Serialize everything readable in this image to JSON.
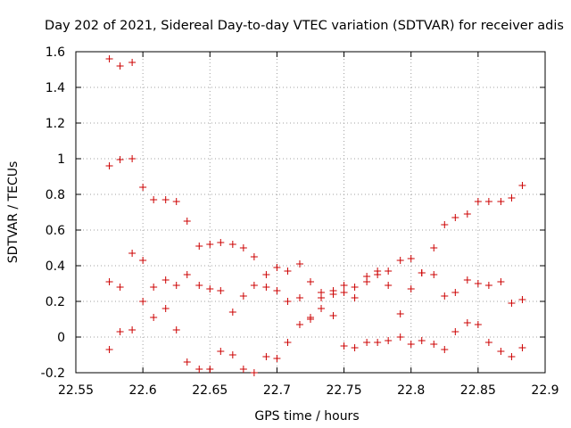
{
  "chart_data": {
    "type": "scatter",
    "title": "Day 202 of 2021, Sidereal Day-to-day VTEC variation (SDTVAR) for receiver adis",
    "xlabel": "GPS time / hours",
    "ylabel": "SDTVAR / TECUs",
    "xlim": [
      22.55,
      22.9
    ],
    "ylim": [
      -0.2,
      1.6
    ],
    "grid": true,
    "xticks": [
      "22.55",
      "22.6",
      "22.65",
      "22.7",
      "22.75",
      "22.8",
      "22.85",
      "22.9"
    ],
    "yticks": [
      "-0.2",
      "0",
      "0.2",
      "0.4",
      "0.6",
      "0.8",
      "1",
      "1.2",
      "1.4",
      "1.6"
    ],
    "series": [
      {
        "name": "SDTVAR",
        "color": "#cc0000",
        "marker": "plus",
        "points": [
          [
            22.575,
            1.56
          ],
          [
            22.583,
            1.52
          ],
          [
            22.592,
            1.54
          ],
          [
            22.575,
            0.96
          ],
          [
            22.583,
            0.995
          ],
          [
            22.592,
            1.0
          ],
          [
            22.6,
            0.84
          ],
          [
            22.608,
            0.77
          ],
          [
            22.617,
            0.77
          ],
          [
            22.625,
            0.76
          ],
          [
            22.633,
            0.65
          ],
          [
            22.642,
            0.51
          ],
          [
            22.65,
            0.52
          ],
          [
            22.658,
            0.53
          ],
          [
            22.667,
            0.52
          ],
          [
            22.675,
            0.5
          ],
          [
            22.683,
            0.45
          ],
          [
            22.692,
            0.35
          ],
          [
            22.7,
            0.39
          ],
          [
            22.708,
            0.37
          ],
          [
            22.717,
            0.41
          ],
          [
            22.725,
            0.31
          ],
          [
            22.733,
            0.25
          ],
          [
            22.742,
            0.26
          ],
          [
            22.75,
            0.29
          ],
          [
            22.758,
            0.28
          ],
          [
            22.767,
            0.34
          ],
          [
            22.775,
            0.37
          ],
          [
            22.783,
            0.37
          ],
          [
            22.792,
            0.43
          ],
          [
            22.8,
            0.44
          ],
          [
            22.808,
            0.36
          ],
          [
            22.817,
            0.5
          ],
          [
            22.825,
            0.63
          ],
          [
            22.833,
            0.67
          ],
          [
            22.842,
            0.69
          ],
          [
            22.85,
            0.76
          ],
          [
            22.858,
            0.76
          ],
          [
            22.867,
            0.76
          ],
          [
            22.875,
            0.78
          ],
          [
            22.883,
            0.85
          ],
          [
            22.575,
            0.31
          ],
          [
            22.583,
            0.28
          ],
          [
            22.592,
            0.47
          ],
          [
            22.6,
            0.43
          ],
          [
            22.6,
            0.2
          ],
          [
            22.608,
            0.28
          ],
          [
            22.617,
            0.32
          ],
          [
            22.625,
            0.29
          ],
          [
            22.633,
            0.35
          ],
          [
            22.642,
            0.29
          ],
          [
            22.65,
            0.27
          ],
          [
            22.658,
            0.26
          ],
          [
            22.667,
            0.14
          ],
          [
            22.675,
            0.23
          ],
          [
            22.683,
            0.29
          ],
          [
            22.692,
            0.28
          ],
          [
            22.7,
            0.26
          ],
          [
            22.708,
            0.2
          ],
          [
            22.717,
            0.22
          ],
          [
            22.725,
            0.1
          ],
          [
            22.733,
            0.22
          ],
          [
            22.742,
            0.24
          ],
          [
            22.75,
            0.25
          ],
          [
            22.758,
            0.22
          ],
          [
            22.767,
            0.31
          ],
          [
            22.775,
            0.35
          ],
          [
            22.783,
            0.29
          ],
          [
            22.792,
            0.13
          ],
          [
            22.8,
            0.27
          ],
          [
            22.808,
            0.36
          ],
          [
            22.817,
            0.35
          ],
          [
            22.825,
            0.23
          ],
          [
            22.833,
            0.25
          ],
          [
            22.842,
            0.32
          ],
          [
            22.85,
            0.3
          ],
          [
            22.858,
            0.29
          ],
          [
            22.867,
            0.31
          ],
          [
            22.875,
            0.19
          ],
          [
            22.883,
            0.21
          ],
          [
            22.575,
            -0.07
          ],
          [
            22.583,
            0.03
          ],
          [
            22.592,
            0.04
          ],
          [
            22.608,
            0.11
          ],
          [
            22.617,
            0.16
          ],
          [
            22.625,
            0.04
          ],
          [
            22.633,
            -0.14
          ],
          [
            22.642,
            -0.18
          ],
          [
            22.65,
            -0.18
          ],
          [
            22.658,
            -0.08
          ],
          [
            22.667,
            -0.1
          ],
          [
            22.675,
            -0.18
          ],
          [
            22.683,
            -0.2
          ],
          [
            22.692,
            -0.11
          ],
          [
            22.7,
            -0.12
          ],
          [
            22.708,
            -0.03
          ],
          [
            22.717,
            0.07
          ],
          [
            22.725,
            0.11
          ],
          [
            22.733,
            0.16
          ],
          [
            22.742,
            0.12
          ],
          [
            22.75,
            -0.05
          ],
          [
            22.758,
            -0.06
          ],
          [
            22.767,
            -0.03
          ],
          [
            22.775,
            -0.03
          ],
          [
            22.783,
            -0.02
          ],
          [
            22.792,
            0.0
          ],
          [
            22.8,
            -0.04
          ],
          [
            22.808,
            -0.02
          ],
          [
            22.817,
            -0.04
          ],
          [
            22.825,
            -0.07
          ],
          [
            22.833,
            0.03
          ],
          [
            22.842,
            0.08
          ],
          [
            22.85,
            0.07
          ],
          [
            22.858,
            -0.03
          ],
          [
            22.867,
            -0.08
          ],
          [
            22.875,
            -0.11
          ],
          [
            22.883,
            -0.06
          ]
        ]
      }
    ]
  }
}
